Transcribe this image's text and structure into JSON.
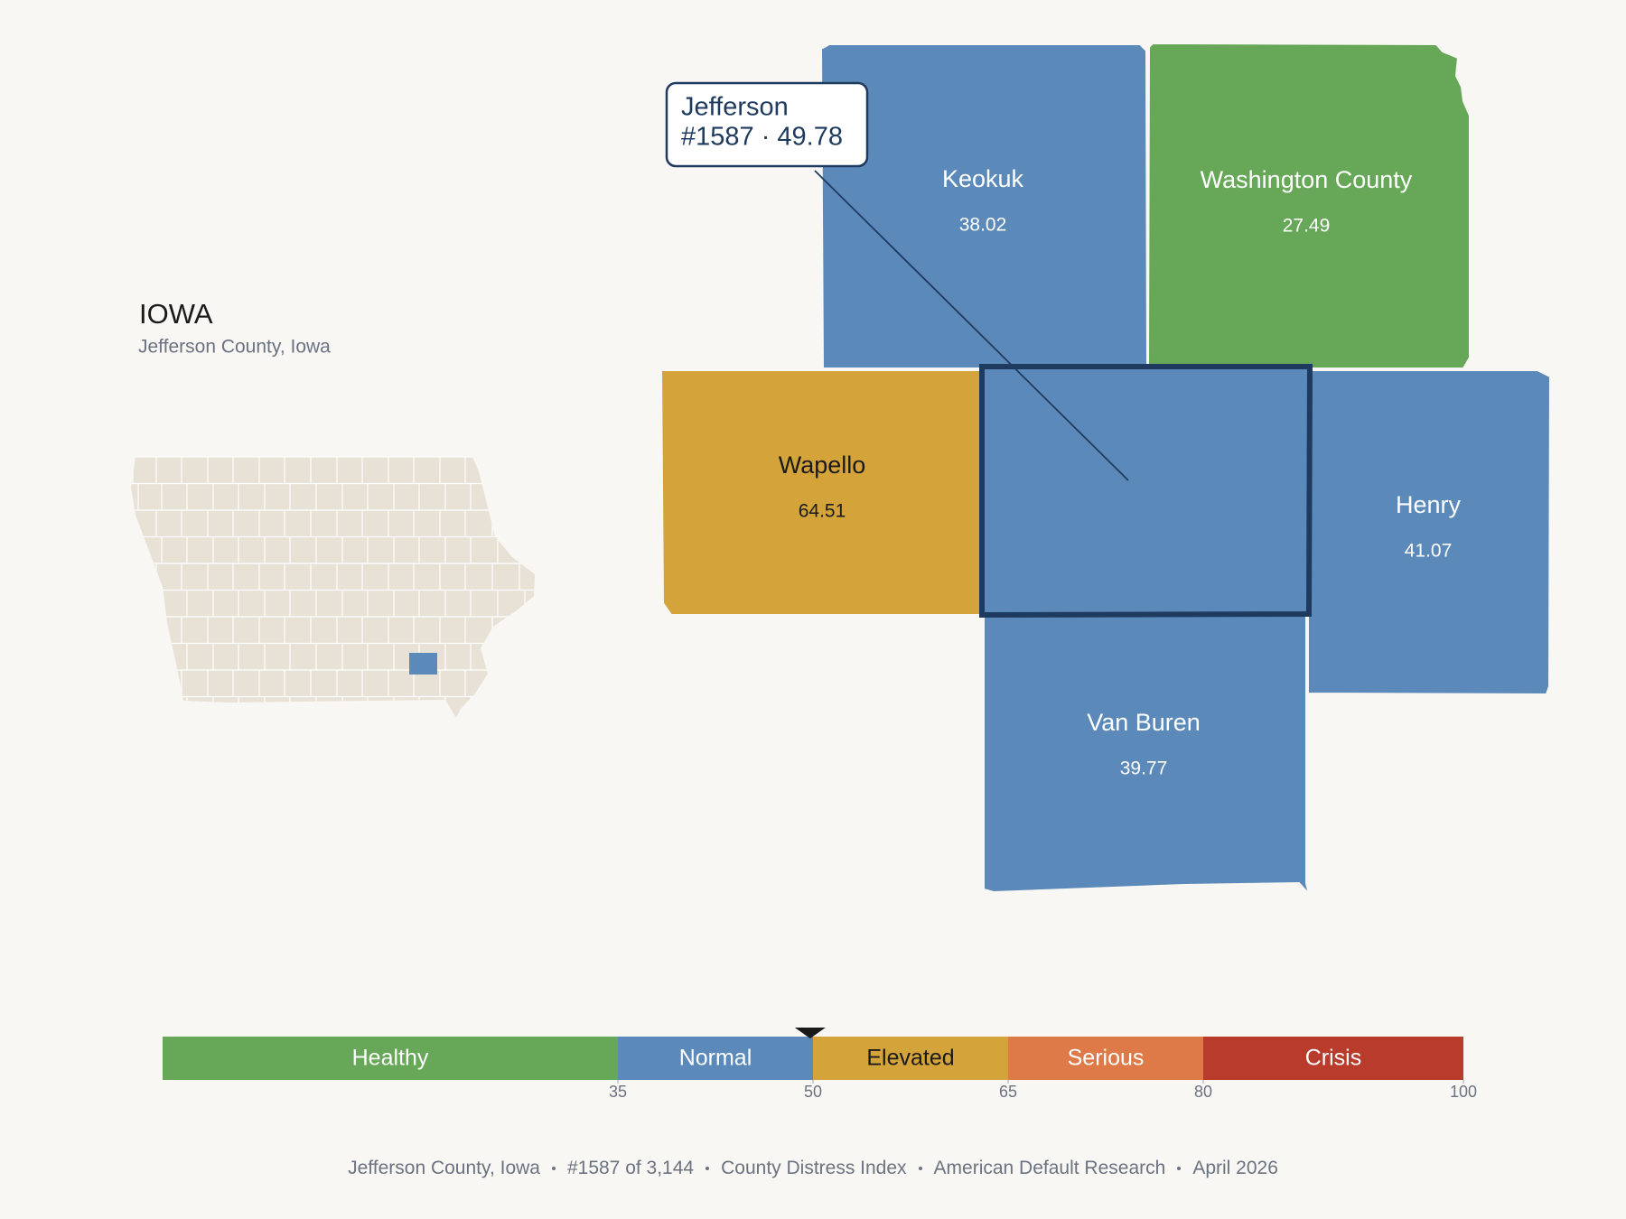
{
  "header": {
    "title": "IOWA",
    "subtitle": "Jefferson County, Iowa"
  },
  "selected": {
    "name": "Jefferson",
    "line": "#1587 · 49.78",
    "value": 49.78
  },
  "counties": [
    {
      "name": "Keokuk",
      "value": 38.02
    },
    {
      "name": "Washington County",
      "value": 27.49
    },
    {
      "name": "Wapello",
      "value": 64.51
    },
    {
      "name": "Henry",
      "value": 41.07
    },
    {
      "name": "Van Buren",
      "value": 39.77
    }
  ],
  "scale": {
    "range": [
      0,
      100
    ],
    "ticks": [
      35,
      50,
      65,
      80,
      100
    ],
    "bands": [
      {
        "name": "Healthy",
        "min": 0,
        "max": 35,
        "color": "#66a858",
        "text_color": "#ffffff"
      },
      {
        "name": "Normal",
        "min": 35,
        "max": 50,
        "color": "#5b8aba",
        "text_color": "#ffffff"
      },
      {
        "name": "Elevated",
        "min": 50,
        "max": 65,
        "color": "#d4a43a",
        "text_color": "#1a1a1a"
      },
      {
        "name": "Serious",
        "min": 65,
        "max": 80,
        "color": "#dd7a48",
        "text_color": "#ffffff"
      },
      {
        "name": "Crisis",
        "min": 80,
        "max": 100,
        "color": "#b93b2b",
        "text_color": "#ffffff"
      }
    ]
  },
  "footer": [
    "Jefferson County, Iowa",
    "#1587 of 3,144",
    "County Distress Index",
    "American Default Research",
    "April 2026"
  ]
}
